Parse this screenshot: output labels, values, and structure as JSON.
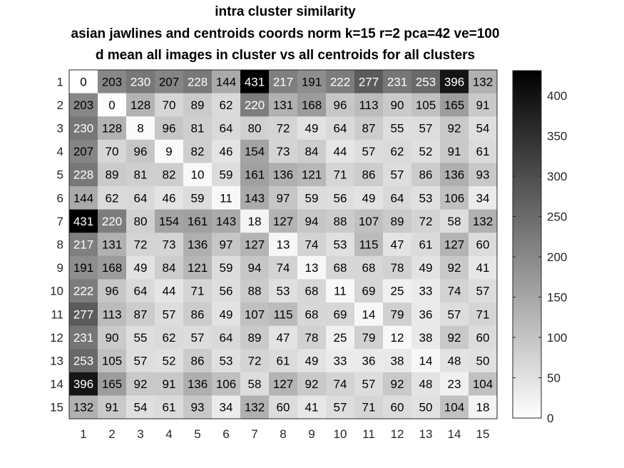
{
  "chart_data": {
    "type": "heatmap",
    "title": [
      "intra cluster similarity",
      "asian jawlines and centroids coords norm k=15 r=2 pca=42 ve=100",
      "d mean all images in cluster vs all centroids for all clusters"
    ],
    "x_labels": [
      "1",
      "2",
      "3",
      "4",
      "5",
      "6",
      "7",
      "8",
      "9",
      "10",
      "11",
      "12",
      "13",
      "14",
      "15"
    ],
    "y_labels": [
      "1",
      "2",
      "3",
      "4",
      "5",
      "6",
      "7",
      "8",
      "9",
      "10",
      "11",
      "12",
      "13",
      "14",
      "15"
    ],
    "values": [
      [
        0,
        203,
        230,
        207,
        228,
        144,
        431,
        217,
        191,
        222,
        277,
        231,
        253,
        396,
        132
      ],
      [
        203,
        0,
        128,
        70,
        89,
        62,
        220,
        131,
        168,
        96,
        113,
        90,
        105,
        165,
        91
      ],
      [
        230,
        128,
        8,
        96,
        81,
        64,
        80,
        72,
        49,
        64,
        87,
        55,
        57,
        92,
        54
      ],
      [
        207,
        70,
        96,
        9,
        82,
        46,
        154,
        73,
        84,
        44,
        57,
        62,
        52,
        91,
        61
      ],
      [
        228,
        89,
        81,
        82,
        10,
        59,
        161,
        136,
        121,
        71,
        86,
        57,
        86,
        136,
        93
      ],
      [
        144,
        62,
        64,
        46,
        59,
        11,
        143,
        97,
        59,
        56,
        49,
        64,
        53,
        106,
        34
      ],
      [
        431,
        220,
        80,
        154,
        161,
        143,
        18,
        127,
        94,
        88,
        107,
        89,
        72,
        58,
        132
      ],
      [
        217,
        131,
        72,
        73,
        136,
        97,
        127,
        13,
        74,
        53,
        115,
        47,
        61,
        127,
        60
      ],
      [
        191,
        168,
        49,
        84,
        121,
        59,
        94,
        74,
        13,
        68,
        68,
        78,
        49,
        92,
        41
      ],
      [
        222,
        96,
        64,
        44,
        71,
        56,
        88,
        53,
        68,
        11,
        69,
        25,
        33,
        74,
        57
      ],
      [
        277,
        113,
        87,
        57,
        86,
        49,
        107,
        115,
        68,
        69,
        14,
        79,
        36,
        57,
        71
      ],
      [
        231,
        90,
        55,
        62,
        57,
        64,
        89,
        47,
        78,
        25,
        79,
        12,
        38,
        92,
        60
      ],
      [
        253,
        105,
        57,
        52,
        86,
        53,
        72,
        61,
        49,
        33,
        36,
        38,
        14,
        48,
        50
      ],
      [
        396,
        165,
        92,
        91,
        136,
        106,
        58,
        127,
        92,
        74,
        57,
        92,
        48,
        23,
        104
      ],
      [
        132,
        91,
        54,
        61,
        93,
        34,
        132,
        60,
        41,
        57,
        71,
        60,
        50,
        104,
        18
      ]
    ],
    "color_range": [
      0,
      431
    ],
    "colormap": "gray-reversed",
    "colorbar": {
      "ticks": [
        0,
        50,
        100,
        150,
        200,
        250,
        300,
        350,
        400
      ]
    }
  }
}
